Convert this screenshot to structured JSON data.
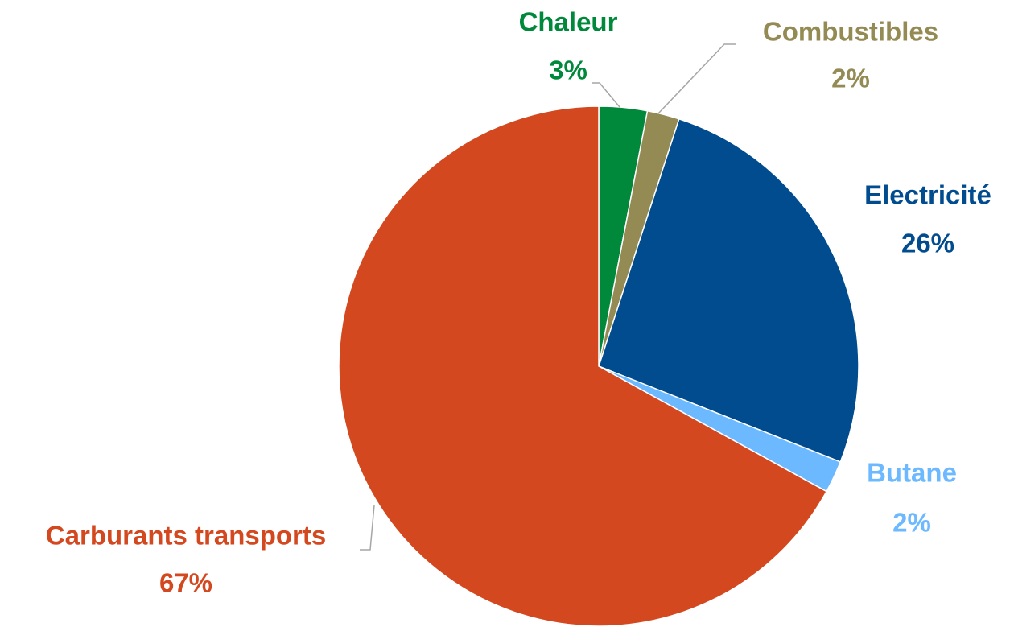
{
  "chart_data": {
    "type": "pie",
    "categories": [
      "Chaleur",
      "Combustibles",
      "Electricité",
      "Butane",
      "Carburants transports"
    ],
    "values": [
      3,
      2,
      26,
      2,
      67
    ],
    "value_labels": [
      "3%",
      "2%",
      "26%",
      "2%",
      "67%"
    ],
    "colors": [
      "#00893b",
      "#948a54",
      "#004c8f",
      "#6cb9ff",
      "#d4481f"
    ]
  }
}
